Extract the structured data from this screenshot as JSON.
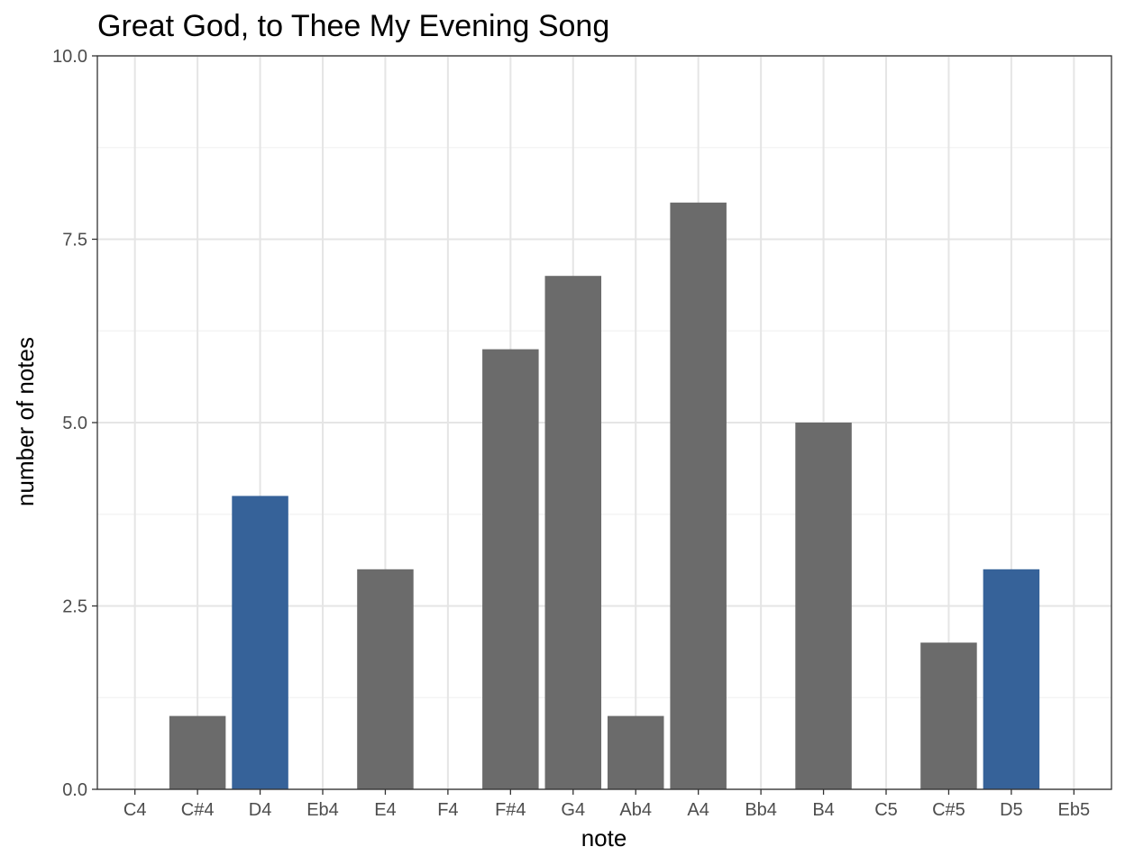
{
  "chart_data": {
    "type": "bar",
    "title": "Great God, to Thee My Evening Song",
    "xlabel": "note",
    "ylabel": "number of notes",
    "categories": [
      "C4",
      "C#4",
      "D4",
      "Eb4",
      "E4",
      "F4",
      "F#4",
      "G4",
      "Ab4",
      "A4",
      "Bb4",
      "B4",
      "C5",
      "C#5",
      "D5",
      "Eb5"
    ],
    "values": [
      0,
      1,
      4,
      0,
      3,
      0,
      6,
      7,
      1,
      8,
      0,
      5,
      0,
      2,
      3,
      0
    ],
    "highlighted": [
      "D4",
      "D5"
    ],
    "ylim": [
      0,
      10
    ],
    "yticks": [
      "0.0",
      "2.5",
      "5.0",
      "7.5",
      "10.0"
    ],
    "grid": true,
    "legend": "none",
    "colors": {
      "bar": "#6b6b6b",
      "highlight": "#366299",
      "grid_major": "#e5e5e5",
      "grid_minor": "#f2f2f2",
      "panel_border": "#333333"
    }
  }
}
